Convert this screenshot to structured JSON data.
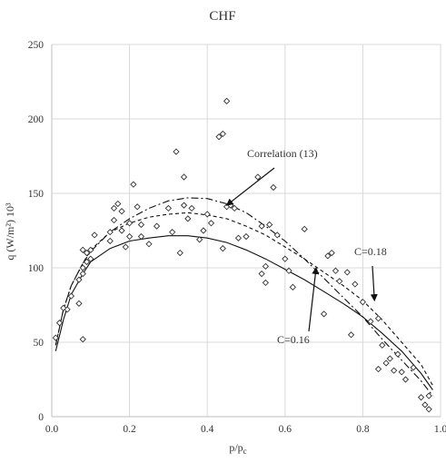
{
  "chart_data": {
    "type": "scatter",
    "title": "CHF",
    "xlabel": "p/p",
    "xlabel_sub": "c",
    "ylabel": "q (W/m²) 10³",
    "xlim": [
      0,
      1
    ],
    "ylim": [
      0,
      250
    ],
    "x_ticks": [
      "0.0",
      "0.2",
      "0.4",
      "0.6",
      "0.8",
      "1.0"
    ],
    "y_ticks": [
      "0",
      "50",
      "100",
      "150",
      "200",
      "250"
    ],
    "grid": true,
    "legend": "none",
    "series": [
      {
        "marker": "diamond",
        "points": [
          [
            0.01,
            53
          ],
          [
            0.02,
            63
          ],
          [
            0.03,
            73
          ],
          [
            0.04,
            72
          ],
          [
            0.05,
            81
          ],
          [
            0.07,
            76
          ],
          [
            0.07,
            92
          ],
          [
            0.08,
            52
          ],
          [
            0.08,
            96
          ],
          [
            0.08,
            100
          ],
          [
            0.08,
            112
          ],
          [
            0.09,
            104
          ],
          [
            0.09,
            110
          ],
          [
            0.1,
            106
          ],
          [
            0.1,
            112
          ],
          [
            0.11,
            122
          ],
          [
            0.15,
            118
          ],
          [
            0.15,
            124
          ],
          [
            0.16,
            132
          ],
          [
            0.16,
            140
          ],
          [
            0.17,
            143
          ],
          [
            0.18,
            125
          ],
          [
            0.18,
            138
          ],
          [
            0.19,
            114
          ],
          [
            0.2,
            121
          ],
          [
            0.2,
            130
          ],
          [
            0.21,
            156
          ],
          [
            0.22,
            141
          ],
          [
            0.23,
            129
          ],
          [
            0.23,
            121
          ],
          [
            0.25,
            116
          ],
          [
            0.27,
            128
          ],
          [
            0.3,
            140
          ],
          [
            0.31,
            124
          ],
          [
            0.32,
            178
          ],
          [
            0.33,
            110
          ],
          [
            0.34,
            142
          ],
          [
            0.34,
            161
          ],
          [
            0.35,
            133
          ],
          [
            0.36,
            140
          ],
          [
            0.38,
            119
          ],
          [
            0.39,
            125
          ],
          [
            0.4,
            136
          ],
          [
            0.41,
            130
          ],
          [
            0.43,
            188
          ],
          [
            0.44,
            190
          ],
          [
            0.44,
            113
          ],
          [
            0.45,
            141
          ],
          [
            0.45,
            212
          ],
          [
            0.46,
            142
          ],
          [
            0.47,
            140
          ],
          [
            0.48,
            120
          ],
          [
            0.5,
            121
          ],
          [
            0.53,
            161
          ],
          [
            0.54,
            128
          ],
          [
            0.54,
            96
          ],
          [
            0.55,
            101
          ],
          [
            0.55,
            90
          ],
          [
            0.56,
            129
          ],
          [
            0.57,
            154
          ],
          [
            0.58,
            122
          ],
          [
            0.6,
            106
          ],
          [
            0.61,
            98
          ],
          [
            0.62,
            87
          ],
          [
            0.65,
            126
          ],
          [
            0.7,
            69
          ],
          [
            0.71,
            108
          ],
          [
            0.72,
            110
          ],
          [
            0.73,
            98
          ],
          [
            0.74,
            91
          ],
          [
            0.76,
            97
          ],
          [
            0.77,
            55
          ],
          [
            0.78,
            89
          ],
          [
            0.8,
            77
          ],
          [
            0.82,
            64
          ],
          [
            0.84,
            66
          ],
          [
            0.84,
            32
          ],
          [
            0.85,
            48
          ],
          [
            0.86,
            36
          ],
          [
            0.87,
            39
          ],
          [
            0.88,
            31
          ],
          [
            0.89,
            42
          ],
          [
            0.9,
            30
          ],
          [
            0.91,
            25
          ],
          [
            0.93,
            33
          ],
          [
            0.95,
            13
          ],
          [
            0.96,
            8
          ],
          [
            0.97,
            5
          ],
          [
            0.97,
            14
          ]
        ]
      },
      {
        "label": "C=0.16",
        "style": "solid",
        "points": [
          [
            0.01,
            44
          ],
          [
            0.03,
            65
          ],
          [
            0.05,
            82
          ],
          [
            0.08,
            96
          ],
          [
            0.1,
            104
          ],
          [
            0.15,
            113
          ],
          [
            0.2,
            118
          ],
          [
            0.25,
            120
          ],
          [
            0.3,
            121.5
          ],
          [
            0.35,
            121.5
          ],
          [
            0.4,
            120
          ],
          [
            0.45,
            117
          ],
          [
            0.5,
            112
          ],
          [
            0.55,
            106
          ],
          [
            0.6,
            99
          ],
          [
            0.65,
            92
          ],
          [
            0.7,
            84
          ],
          [
            0.75,
            76
          ],
          [
            0.8,
            67
          ],
          [
            0.85,
            56
          ],
          [
            0.9,
            44
          ],
          [
            0.95,
            29
          ],
          [
            0.98,
            18
          ]
        ]
      },
      {
        "label": "C=0.18",
        "style": "dashed",
        "points": [
          [
            0.01,
            48
          ],
          [
            0.03,
            72
          ],
          [
            0.05,
            88
          ],
          [
            0.08,
            103
          ],
          [
            0.1,
            112
          ],
          [
            0.15,
            124
          ],
          [
            0.2,
            130
          ],
          [
            0.25,
            134
          ],
          [
            0.3,
            136
          ],
          [
            0.35,
            137
          ],
          [
            0.4,
            135.5
          ],
          [
            0.45,
            133
          ],
          [
            0.5,
            128
          ],
          [
            0.55,
            122
          ],
          [
            0.6,
            114
          ],
          [
            0.65,
            106
          ],
          [
            0.7,
            97
          ],
          [
            0.75,
            88
          ],
          [
            0.8,
            78
          ],
          [
            0.85,
            65
          ],
          [
            0.9,
            50
          ],
          [
            0.95,
            35
          ],
          [
            0.98,
            21
          ]
        ]
      },
      {
        "label": "Correlation (13)",
        "style": "dash-dot",
        "points": [
          [
            0.01,
            48
          ],
          [
            0.03,
            72
          ],
          [
            0.05,
            88
          ],
          [
            0.08,
            103
          ],
          [
            0.1,
            111
          ],
          [
            0.15,
            124
          ],
          [
            0.2,
            133
          ],
          [
            0.25,
            140
          ],
          [
            0.3,
            145
          ],
          [
            0.35,
            147
          ],
          [
            0.4,
            146.5
          ],
          [
            0.45,
            143
          ],
          [
            0.5,
            137
          ],
          [
            0.55,
            128
          ],
          [
            0.6,
            118
          ],
          [
            0.65,
            106
          ],
          [
            0.7,
            93
          ],
          [
            0.75,
            80
          ],
          [
            0.8,
            67
          ],
          [
            0.85,
            52
          ],
          [
            0.9,
            38
          ],
          [
            0.95,
            24
          ],
          [
            0.98,
            14
          ]
        ]
      }
    ],
    "annotations": [
      {
        "text": "Correlation (13)",
        "target": [
          0.45,
          142
        ]
      },
      {
        "text": "C=0.18",
        "target": [
          0.83,
          78
        ]
      },
      {
        "text": "C=0.16",
        "target": [
          0.68,
          100
        ]
      }
    ]
  }
}
